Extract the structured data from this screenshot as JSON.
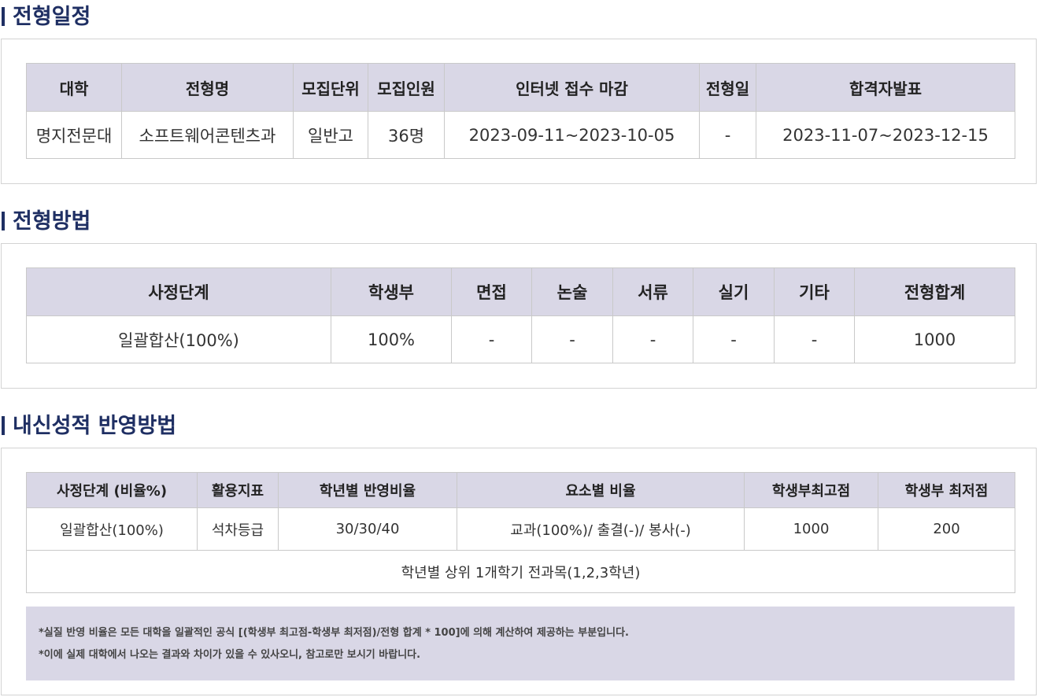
{
  "schedule": {
    "title": "전형일정",
    "headers": [
      "대학",
      "전형명",
      "모집단위",
      "모집인원",
      "인터넷 접수 마감",
      "전형일",
      "합격자발표"
    ],
    "row": [
      "명지전문대",
      "소프트웨어콘텐츠과",
      "일반고",
      "36명",
      "2023-09-11~2023-10-05",
      "-",
      "2023-11-07~2023-12-15"
    ]
  },
  "method": {
    "title": "전형방법",
    "headers": [
      "사정단계",
      "학생부",
      "면접",
      "논술",
      "서류",
      "실기",
      "기타",
      "전형합계"
    ],
    "row": [
      "일괄합산(100%)",
      "100%",
      "-",
      "-",
      "-",
      "-",
      "-",
      "1000"
    ]
  },
  "grades": {
    "title": "내신성적 반영방법",
    "headers": [
      "사정단계 (비율%)",
      "활용지표",
      "학년별 반영비율",
      "요소별 비율",
      "학생부최고점",
      "학생부 최저점"
    ],
    "row": [
      "일괄합산(100%)",
      "석차등급",
      "30/30/40",
      "교과(100%)/ 출결(-)/ 봉사(-)",
      "1000",
      "200"
    ],
    "footer_row": "학년별 상위 1개학기 전과목(1,2,3학년)",
    "notes": [
      "*실질 반영 비율은 모든 대학을 일괄적인 공식 [(학생부 최고점-학생부 최저점)/전형 합계 * 100]에 의해 계산하여 제공하는 부분입니다.",
      "*이에 실제 대학에서 나오는 결과와 차이가 있을 수 있사오니, 참고로만 보시기 바랍니다."
    ]
  },
  "colors": {
    "title": "#1f2f63",
    "header_bg": "#d9d7e6",
    "border": "#c9c9c9"
  }
}
